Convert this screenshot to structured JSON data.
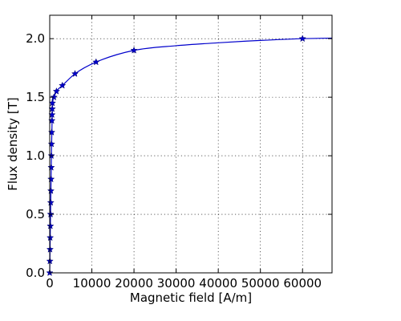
{
  "chart_data": {
    "type": "line",
    "title": "",
    "xlabel": "Magnetic field [A/m]",
    "ylabel": "Flux density [T]",
    "xlim": [
      0,
      67000
    ],
    "ylim": [
      0,
      2.2
    ],
    "xticks": [
      0,
      10000,
      20000,
      30000,
      40000,
      50000,
      60000
    ],
    "xtick_labels": [
      "0",
      "10000",
      "20000",
      "30000",
      "40000",
      "50000",
      "60000"
    ],
    "yticks": [
      0.0,
      0.5,
      1.0,
      1.5,
      2.0
    ],
    "ytick_labels": [
      "0.0",
      "0.5",
      "1.0",
      "1.5",
      "2.0"
    ],
    "grid": true,
    "legend": "none",
    "series": [
      {
        "color": "#0000cc",
        "marker": "star",
        "x": [
          0,
          40,
          80,
          120,
          160,
          200,
          240,
          280,
          320,
          360,
          400,
          440,
          480,
          520,
          560,
          600,
          640,
          1000,
          1600,
          3000,
          6000,
          11000,
          20000,
          60000
        ],
        "y": [
          0.0,
          0.1,
          0.2,
          0.3,
          0.4,
          0.5,
          0.6,
          0.7,
          0.8,
          0.9,
          1.0,
          1.1,
          1.2,
          1.3,
          1.35,
          1.4,
          1.45,
          1.5,
          1.55,
          1.6,
          1.7,
          1.8,
          1.9,
          2.0
        ]
      }
    ],
    "curve": {
      "x": [
        0,
        400,
        700,
        1000,
        1600,
        3000,
        6000,
        11000,
        20000,
        30000,
        40000,
        50000,
        60000,
        67000
      ],
      "y": [
        0.0,
        1.0,
        1.45,
        1.5,
        1.55,
        1.6,
        1.7,
        1.8,
        1.9,
        1.94,
        1.965,
        1.985,
        2.0,
        2.005
      ]
    }
  }
}
